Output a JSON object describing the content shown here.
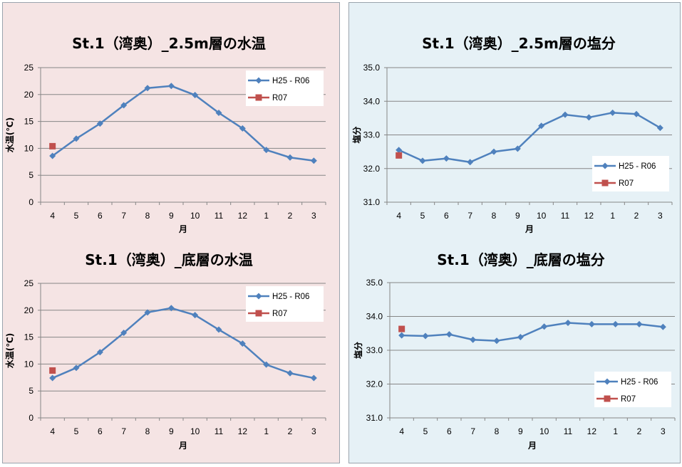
{
  "colors": {
    "panel_left": "#f5e4e4",
    "panel_right": "#e6f1f6",
    "series_main": "#4f81bd",
    "series_current": "#c0504d",
    "grid": "#868686"
  },
  "chart_data": [
    {
      "type": "line",
      "title": "St.1（湾奥）_2.5m層の水温",
      "xlabel": "月",
      "ylabel": "水温(℃)",
      "categories": [
        "4",
        "5",
        "6",
        "7",
        "8",
        "9",
        "10",
        "11",
        "12",
        "1",
        "2",
        "3"
      ],
      "ylim": [
        0,
        25
      ],
      "yticks": [
        "0",
        "5",
        "10",
        "15",
        "20",
        "25"
      ],
      "legend_position": "top-right",
      "grid": true,
      "series": [
        {
          "name": "H25 - R06",
          "values": [
            8.6,
            11.8,
            14.6,
            18.0,
            21.2,
            21.6,
            19.9,
            16.6,
            13.7,
            9.7,
            8.3,
            7.7
          ]
        },
        {
          "name": "R07",
          "values": [
            10.4,
            null,
            null,
            null,
            null,
            null,
            null,
            null,
            null,
            null,
            null,
            null
          ]
        }
      ]
    },
    {
      "type": "line",
      "title": "St.1（湾奥）_2.5m層の塩分",
      "xlabel": "月",
      "ylabel": "塩分",
      "categories": [
        "4",
        "5",
        "6",
        "7",
        "8",
        "9",
        "10",
        "11",
        "12",
        "1",
        "2",
        "3"
      ],
      "ylim": [
        31.0,
        35.0
      ],
      "yticks": [
        "31.0",
        "32.0",
        "33.0",
        "34.0",
        "35.0"
      ],
      "legend_position": "right",
      "grid": true,
      "series": [
        {
          "name": "H25 - R06",
          "values": [
            32.55,
            32.23,
            32.3,
            32.19,
            32.5,
            32.59,
            33.27,
            33.6,
            33.52,
            33.66,
            33.62,
            33.21
          ]
        },
        {
          "name": "R07",
          "values": [
            32.39,
            null,
            null,
            null,
            null,
            null,
            null,
            null,
            null,
            null,
            null,
            null
          ]
        }
      ]
    },
    {
      "type": "line",
      "title": "St.1（湾奥）_底層の水温",
      "xlabel": "月",
      "ylabel": "水温(℃)",
      "categories": [
        "4",
        "5",
        "6",
        "7",
        "8",
        "9",
        "10",
        "11",
        "12",
        "1",
        "2",
        "3"
      ],
      "ylim": [
        0,
        25
      ],
      "yticks": [
        "0",
        "5",
        "10",
        "15",
        "20",
        "25"
      ],
      "legend_position": "top-right",
      "grid": true,
      "series": [
        {
          "name": "H25 - R06",
          "values": [
            7.4,
            9.3,
            12.2,
            15.8,
            19.6,
            20.4,
            19.1,
            16.4,
            13.8,
            9.9,
            8.3,
            7.4
          ]
        },
        {
          "name": "R07",
          "values": [
            8.8,
            null,
            null,
            null,
            null,
            null,
            null,
            null,
            null,
            null,
            null,
            null
          ]
        }
      ]
    },
    {
      "type": "line",
      "title": "St.1（湾奥）_底層の塩分",
      "xlabel": "月",
      "ylabel": "塩分",
      "categories": [
        "4",
        "5",
        "6",
        "7",
        "8",
        "9",
        "10",
        "11",
        "12",
        "1",
        "2",
        "3"
      ],
      "ylim": [
        31.0,
        35.0
      ],
      "yticks": [
        "31.0",
        "32.0",
        "33.0",
        "34.0",
        "35.0"
      ],
      "legend_position": "bottom-right",
      "grid": true,
      "series": [
        {
          "name": "H25 - R06",
          "values": [
            33.44,
            33.42,
            33.47,
            33.31,
            33.28,
            33.39,
            33.7,
            33.81,
            33.77,
            33.77,
            33.77,
            33.69
          ]
        },
        {
          "name": "R07",
          "values": [
            33.63,
            null,
            null,
            null,
            null,
            null,
            null,
            null,
            null,
            null,
            null,
            null
          ]
        }
      ]
    }
  ]
}
